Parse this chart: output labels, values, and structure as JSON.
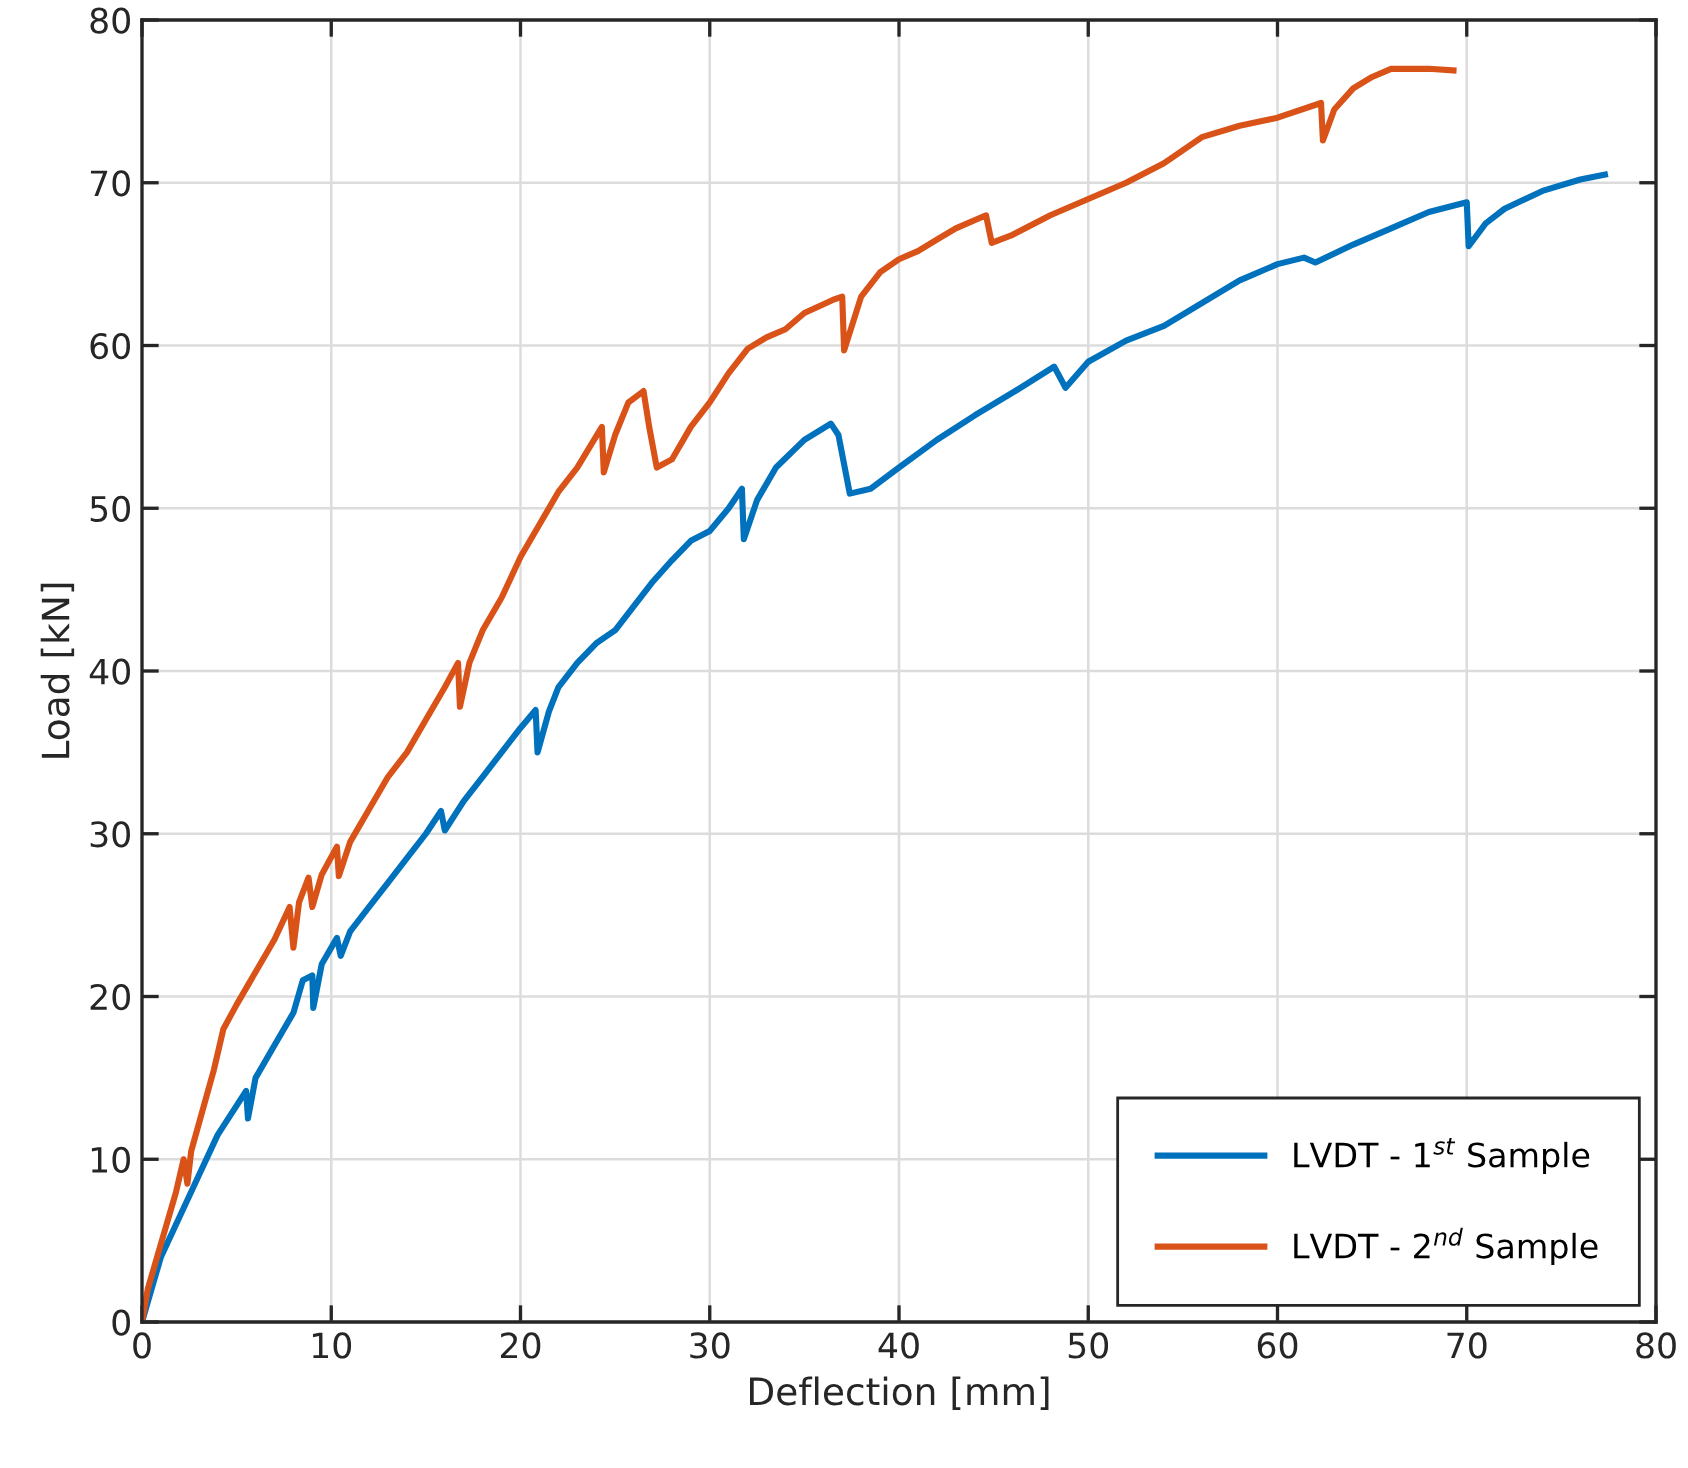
{
  "chart_data": {
    "type": "line",
    "xlabel": "Deflection [mm]",
    "ylabel": "Load [kN]",
    "xlim": [
      0,
      80
    ],
    "ylim": [
      0,
      80
    ],
    "xticks": [
      0,
      10,
      20,
      30,
      40,
      50,
      60,
      70,
      80
    ],
    "yticks": [
      0,
      10,
      20,
      30,
      40,
      50,
      60,
      70,
      80
    ],
    "grid": true,
    "legend": "bottom right",
    "marker": "none",
    "line_style": "solid",
    "series": [
      {
        "name": "LVDT - 1$^{st}$ Sample",
        "color": "#0072bd",
        "x": [
          0,
          0.5,
          1,
          2,
          3,
          4,
          5,
          5.5,
          5.6,
          6,
          7,
          8,
          8.5,
          9,
          9.05,
          9.5,
          10.3,
          10.5,
          11,
          12,
          13,
          14,
          15,
          15.8,
          16,
          17,
          18,
          19,
          20,
          20.8,
          20.9,
          21.5,
          22,
          23,
          24,
          25,
          26,
          27,
          28,
          29,
          30,
          31,
          31.7,
          31.8,
          32.5,
          33.5,
          35,
          36.4,
          36.8,
          37.4,
          38.5,
          40,
          42,
          44,
          46,
          48.2,
          48.8,
          50,
          52,
          54,
          56,
          58,
          60,
          61.4,
          62,
          64,
          66,
          68,
          70,
          70.1,
          71,
          72,
          74,
          76,
          77.3
        ],
        "values": [
          0,
          2,
          4,
          6.5,
          9,
          11.5,
          13.3,
          14.2,
          12.5,
          15,
          17,
          19,
          21,
          21.3,
          19.3,
          22,
          23.6,
          22.5,
          24,
          25.5,
          27,
          28.5,
          30,
          31.4,
          30.2,
          32,
          33.5,
          35,
          36.5,
          37.6,
          35,
          37.5,
          39,
          40.5,
          41.7,
          42.5,
          44,
          45.5,
          46.8,
          48,
          48.6,
          50,
          51.2,
          48.1,
          50.5,
          52.5,
          54.2,
          55.2,
          54.5,
          50.9,
          51.2,
          52.5,
          54.2,
          55.7,
          57.1,
          58.7,
          57.4,
          59,
          60.3,
          61.2,
          62.6,
          64,
          65,
          65.4,
          65.1,
          66.2,
          67.2,
          68.2,
          68.8,
          66.1,
          67.5,
          68.4,
          69.5,
          70.2,
          70.5
        ]
      },
      {
        "name": "LVDT - 2$^{nd}$ Sample",
        "color": "#d95319",
        "x": [
          0,
          0.3,
          0.8,
          1.3,
          1.8,
          2.2,
          2.4,
          2.6,
          3.2,
          3.8,
          4.3,
          5,
          6,
          7,
          7.8,
          8,
          8.3,
          8.8,
          9,
          9.5,
          10.3,
          10.4,
          11,
          12,
          13,
          14,
          15,
          16,
          16.7,
          16.8,
          17.3,
          18,
          19,
          20,
          21,
          22,
          23,
          24.3,
          24.4,
          25,
          25.7,
          26.5,
          26.8,
          27.2,
          28,
          29,
          30,
          31,
          32,
          33,
          34,
          35,
          36.5,
          37,
          37.1,
          38,
          39,
          40,
          41,
          42,
          43,
          44.6,
          44.9,
          46,
          48,
          50,
          52,
          54,
          56,
          58,
          60,
          62.3,
          62.4,
          63,
          64,
          65,
          66,
          68,
          69.3
        ],
        "values": [
          0,
          2,
          4,
          6,
          8,
          10,
          8.5,
          10.5,
          13,
          15.5,
          18,
          19.5,
          21.5,
          23.5,
          25.5,
          23,
          25.8,
          27.3,
          25.5,
          27.5,
          29.2,
          27.4,
          29.5,
          31.5,
          33.5,
          35,
          37,
          39,
          40.5,
          37.8,
          40.5,
          42.5,
          44.5,
          47,
          49,
          51,
          52.5,
          55,
          52.2,
          54.5,
          56.5,
          57.2,
          55,
          52.5,
          53,
          55,
          56.5,
          58.3,
          59.8,
          60.5,
          61,
          62,
          62.8,
          63,
          59.7,
          63,
          64.5,
          65.3,
          65.8,
          66.5,
          67.2,
          68,
          66.3,
          66.8,
          68,
          69,
          70,
          71.2,
          72.8,
          73.5,
          74,
          74.9,
          72.6,
          74.5,
          75.8,
          76.5,
          77,
          77,
          76.9
        ]
      }
    ]
  }
}
